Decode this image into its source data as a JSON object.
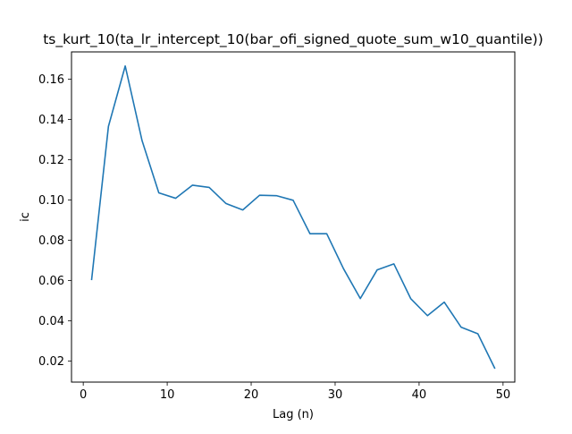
{
  "chart_data": {
    "type": "line",
    "title": "ts_kurt_10(ta_lr_intercept_10(bar_ofi_signed_quote_sum_w10_quantile))",
    "xlabel": "Lag (n)",
    "ylabel": "ic",
    "xlim": [
      -1.4,
      51.4
    ],
    "ylim": [
      0.0095,
      0.1735
    ],
    "xticks": [
      0,
      10,
      20,
      30,
      40,
      50
    ],
    "yticks": [
      0.02,
      0.04,
      0.06,
      0.08,
      0.1,
      0.12,
      0.14,
      0.16
    ],
    "xtick_labels": [
      "0",
      "10",
      "20",
      "30",
      "40",
      "50"
    ],
    "ytick_labels": [
      "0.02",
      "0.04",
      "0.06",
      "0.08",
      "0.10",
      "0.12",
      "0.14",
      "0.16"
    ],
    "grid": false,
    "series": [
      {
        "color": "#1f77b4",
        "x": [
          1,
          3,
          5,
          7,
          9,
          11,
          13,
          15,
          17,
          19,
          21,
          23,
          25,
          27,
          29,
          31,
          33,
          35,
          37,
          39,
          41,
          43,
          45,
          47,
          49
        ],
        "values": [
          0.0605,
          0.1365,
          0.1665,
          0.1295,
          0.1035,
          0.1008,
          0.1073,
          0.1062,
          0.0982,
          0.095,
          0.1023,
          0.1021,
          0.0998,
          0.0832,
          0.0832,
          0.0658,
          0.051,
          0.0652,
          0.0682,
          0.051,
          0.0425,
          0.0492,
          0.0368,
          0.0335,
          0.0165
        ]
      }
    ]
  }
}
